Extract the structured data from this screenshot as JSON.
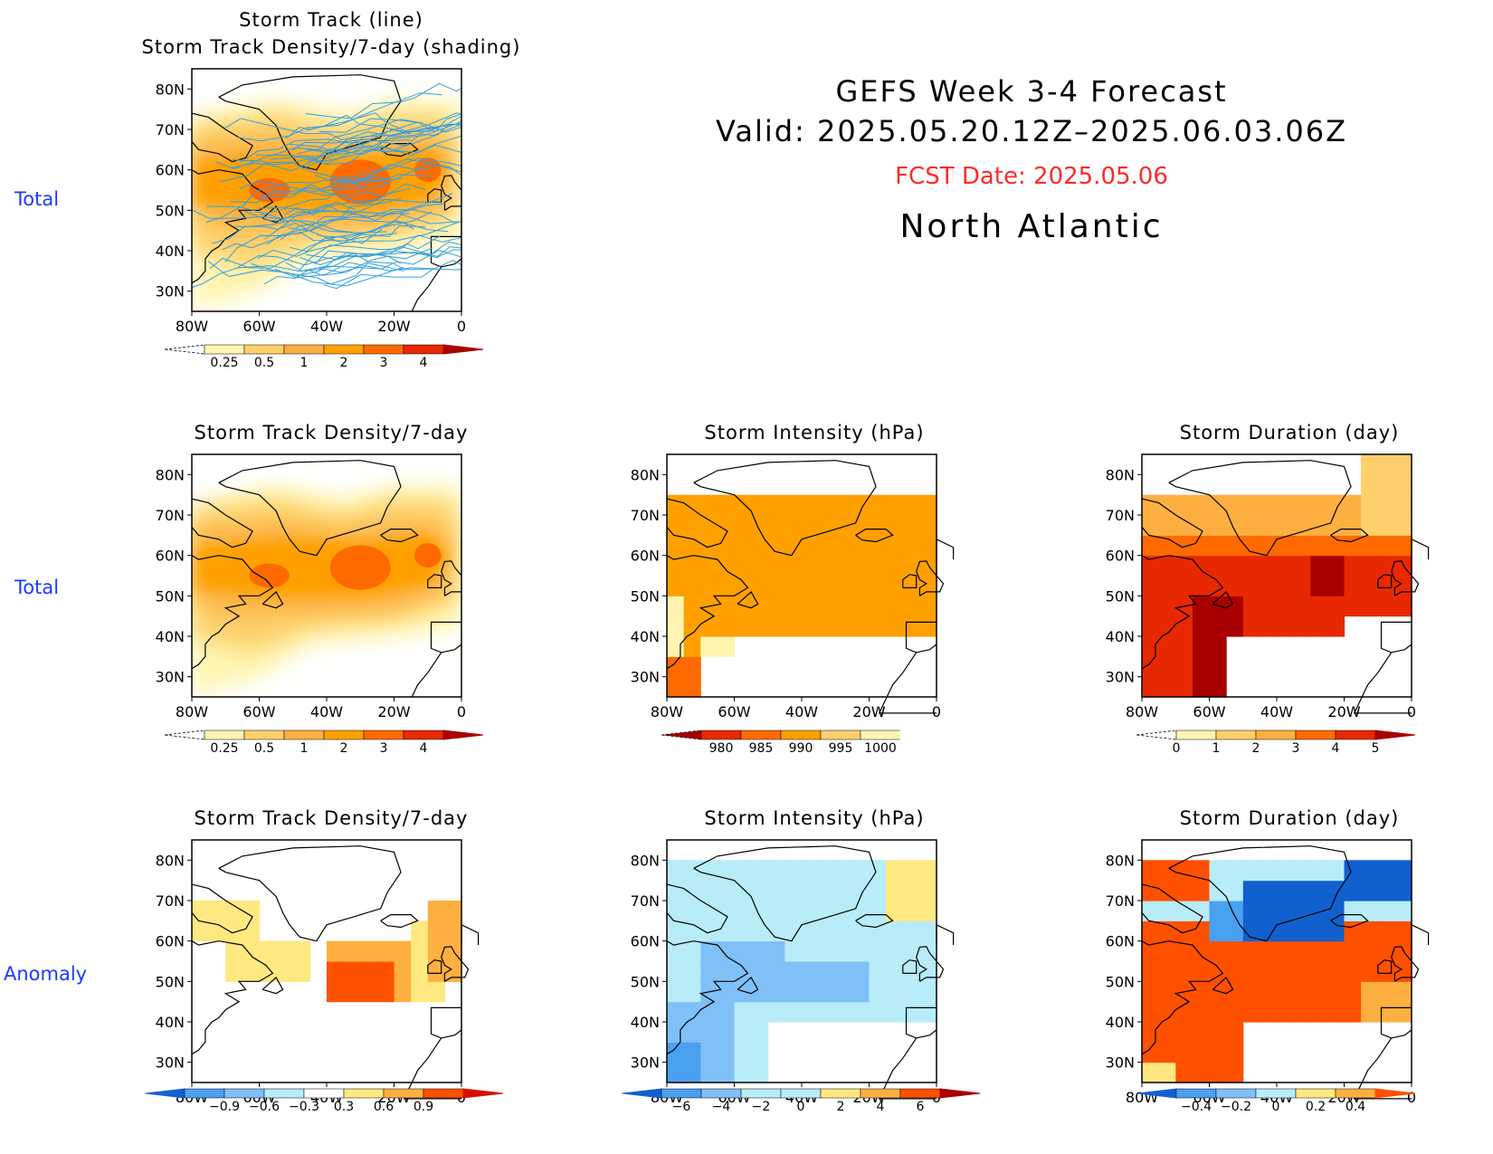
{
  "header": {
    "title": "GEFS Week 3-4 Forecast",
    "valid": "Valid: 2025.05.20.12Z–2025.06.03.06Z",
    "fcst_date": "FCST Date: 2025.05.06",
    "region": "North Atlantic"
  },
  "row_labels": [
    "Total",
    "Total",
    "Anomaly"
  ],
  "axes": {
    "lat_ticks": [
      "80N",
      "70N",
      "60N",
      "50N",
      "40N",
      "30N"
    ],
    "lon_ticks": [
      "80W",
      "60W",
      "40W",
      "20W",
      "0"
    ]
  },
  "colors": {
    "land_outline": "#000000",
    "track_line": "#33a0e0",
    "date_text": "#ff2a2a",
    "row_label": "#1a3cff"
  },
  "chart_data": [
    {
      "id": "track-total",
      "type": "heatmap",
      "title": [
        "Storm Track (line)",
        "Storm Track Density/7-day (shading)"
      ],
      "colorbar": {
        "labels": [
          "0.25",
          "0.5",
          "1",
          "2",
          "3",
          "4"
        ],
        "colors": [
          "#ffffff",
          "#fff5b0",
          "#fdd06b",
          "#fdb040",
          "#ffa000",
          "#ff6a00",
          "#e82800",
          "#a80000"
        ]
      },
      "blobs_field": "density"
    },
    {
      "id": "density-total",
      "type": "heatmap",
      "title": [
        "Storm Track Density/7-day"
      ],
      "colorbar": {
        "labels": [
          "0.25",
          "0.5",
          "1",
          "2",
          "3",
          "4"
        ],
        "colors": [
          "#ffffff",
          "#fff5b0",
          "#fdd06b",
          "#fdb040",
          "#ffa000",
          "#ff6a00",
          "#e82800",
          "#a80000"
        ]
      }
    },
    {
      "id": "intensity-total",
      "type": "heatmap",
      "title": [
        "Storm Intensity (hPa)"
      ],
      "colorbar": {
        "labels": [
          "980",
          "985",
          "990",
          "995",
          "1000"
        ],
        "colors": [
          "#a80000",
          "#e82800",
          "#ff6a00",
          "#ffa000",
          "#fdd06b",
          "#fff5b0",
          "#ffffff"
        ]
      }
    },
    {
      "id": "duration-total",
      "type": "heatmap",
      "title": [
        "Storm Duration (day)"
      ],
      "colorbar": {
        "labels": [
          "0",
          "1",
          "2",
          "3",
          "4",
          "5"
        ],
        "colors": [
          "#ffffff",
          "#fff5b0",
          "#fdd06b",
          "#fdb040",
          "#ff6a00",
          "#e82800",
          "#a80000"
        ]
      }
    },
    {
      "id": "density-anom",
      "type": "heatmap",
      "title": [
        "Storm Track Density/7-day"
      ],
      "colorbar": {
        "labels": [
          "−0.9",
          "−0.6",
          "−0.3",
          "0.3",
          "0.6",
          "0.9"
        ],
        "colors": [
          "#1060d0",
          "#4aa0f0",
          "#80c0f8",
          "#b8ecf8",
          "#ffffff",
          "#ffe880",
          "#fdb040",
          "#ff5000",
          "#d81000"
        ]
      }
    },
    {
      "id": "intensity-anom",
      "type": "heatmap",
      "title": [
        "Storm Intensity (hPa)"
      ],
      "colorbar": {
        "labels": [
          "−6",
          "−4",
          "−2",
          "0",
          "2",
          "4",
          "6"
        ],
        "colors": [
          "#1060d0",
          "#4aa0f0",
          "#80c0f8",
          "#b8ecf8",
          "#b8ecf8",
          "#ffe880",
          "#fdb040",
          "#ff5000",
          "#a80000"
        ]
      }
    },
    {
      "id": "duration-anom",
      "type": "heatmap",
      "title": [
        "Storm Duration (day)"
      ],
      "colorbar": {
        "labels": [
          "−0.4",
          "−0.2",
          "0",
          "0.2",
          "0.4"
        ],
        "colors": [
          "#1060d0",
          "#4aa0f0",
          "#80c0f8",
          "#b8ecf8",
          "#ffe880",
          "#fdb040",
          "#ff5000"
        ]
      }
    }
  ]
}
